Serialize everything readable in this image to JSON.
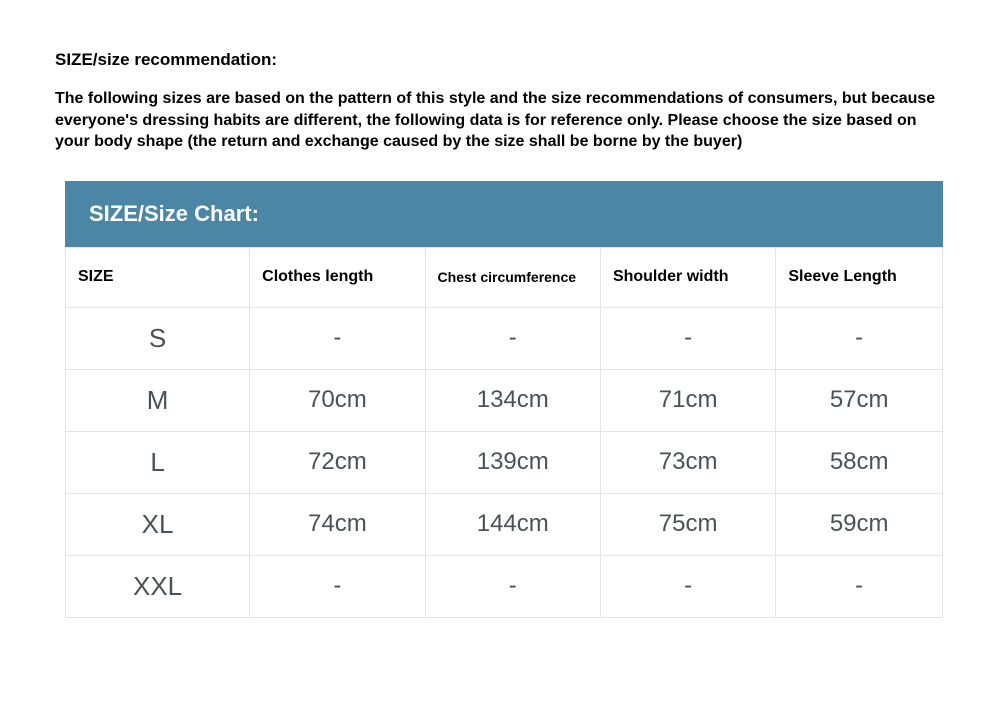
{
  "heading": "SIZE/size recommendation:",
  "description": "The following sizes are based on the pattern of this style and the size recommendations of consumers, but because everyone's dressing habits are different, the following data is for reference only. Please choose the size based on your body shape (the return and exchange caused by the size shall be borne by the buyer)",
  "chart": {
    "title": "SIZE/Size Chart:",
    "title_bg": "#4b86a5",
    "title_color": "#ffffff",
    "border_color": "#e4e4e4",
    "cell_text_color": "#4a5257",
    "header_text_color": "#000000",
    "columns": [
      "SIZE",
      "Clothes length",
      "Chest circumference",
      "Shoulder width",
      "Sleeve Length"
    ],
    "rows": [
      {
        "size": "S",
        "values": [
          "-",
          "-",
          "-",
          "-"
        ]
      },
      {
        "size": "M",
        "values": [
          "70cm",
          "134cm",
          "71cm",
          "57cm"
        ]
      },
      {
        "size": "L",
        "values": [
          "72cm",
          "139cm",
          "73cm",
          "58cm"
        ]
      },
      {
        "size": "XL",
        "values": [
          "74cm",
          "144cm",
          "75cm",
          "59cm"
        ]
      },
      {
        "size": "XXL",
        "values": [
          "-",
          "-",
          "-",
          "-"
        ]
      }
    ]
  }
}
